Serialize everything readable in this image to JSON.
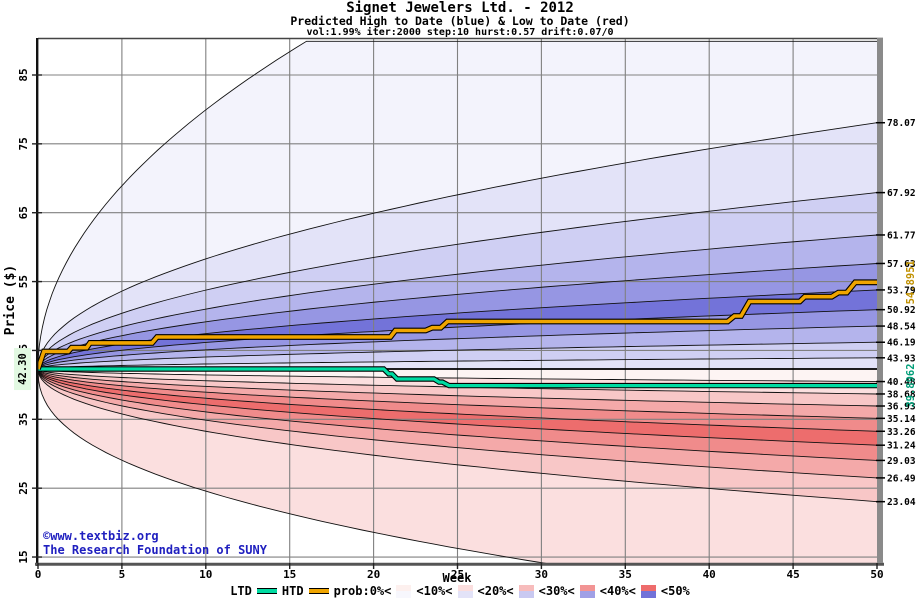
{
  "header": {
    "title": "Signet Jewelers Ltd. - 2012",
    "subtitle": "Predicted High to Date (blue) &  Low to Date (red)",
    "params": "vol:1.99% iter:2000 step:10 hurst:0.57 drift:0.07/0"
  },
  "watermark": {
    "line1": "©www.textbiz.org",
    "line2": "The Research Foundation of SUNY",
    "color": "#1f1fbf"
  },
  "chart_data": {
    "type": "area",
    "title": "Signet Jewelers Ltd. - 2012",
    "xlabel": "Week",
    "ylabel": "Price ($)",
    "xlim": [
      0,
      50
    ],
    "ylim": [
      14.1,
      90.4
    ],
    "x_ticks": [
      0,
      5,
      10,
      15,
      20,
      25,
      30,
      35,
      40,
      45,
      50
    ],
    "y_ticks": [
      15,
      25,
      35,
      45,
      55,
      65,
      75,
      85
    ],
    "grid": true,
    "start_price": 42.3,
    "start_price_label": "42.30",
    "start_label_bg": "#e2f9e2",
    "high_fan": {
      "description": "High-to-date percentile boundary curves, right-edge end values",
      "boundary_end_values": [
        78.07,
        67.92,
        61.77,
        57.63,
        53.79,
        50.92,
        48.54,
        46.19,
        43.93
      ],
      "labeled_exponent": 0.5,
      "envelope": {
        "cap_price": 89.9,
        "cap_week": 16,
        "exponent": 0.5
      },
      "band_fills": [
        "#f3f3fc",
        "#e3e3f8",
        "#cfcff3",
        "#b4b4ec",
        "#9696e3",
        "#7373d9",
        "#9696e3",
        "#b4b4ec",
        "#cfcff3",
        "#e3e3f8"
      ]
    },
    "low_fan": {
      "description": "Low-to-date percentile boundary curves, right-edge end values",
      "boundary_end_values": [
        40.48,
        38.68,
        36.93,
        35.14,
        33.26,
        31.24,
        29.03,
        26.49,
        23.04
      ],
      "labeled_exponent": 0.47,
      "envelope": {
        "drop": 28.2,
        "exit_week": 30.2,
        "exponent": 0.42
      },
      "band_fills": [
        "#fdf4f3",
        "#fbdfdf",
        "#f8c7c7",
        "#f4a9a9",
        "#f08b8b",
        "#ed6d6d",
        "#f08b8b",
        "#f4a9a9",
        "#f8c7c7",
        "#fbdfdf",
        "#fdf4f3"
      ]
    },
    "htd_line": {
      "name": "HTD",
      "end_label": "54.8951",
      "color": "#f0a500",
      "label_color": "#c09000",
      "points": [
        [
          0,
          42.3
        ],
        [
          0.35,
          44.85
        ],
        [
          1.8,
          44.85
        ],
        [
          2.0,
          45.4
        ],
        [
          2.9,
          45.4
        ],
        [
          3.1,
          46.1
        ],
        [
          6.8,
          46.1
        ],
        [
          7.1,
          46.95
        ],
        [
          21.0,
          46.95
        ],
        [
          21.3,
          47.9
        ],
        [
          23.1,
          47.9
        ],
        [
          23.5,
          48.3
        ],
        [
          24.0,
          48.3
        ],
        [
          24.4,
          49.2
        ],
        [
          41.1,
          49.2
        ],
        [
          41.5,
          50.0
        ],
        [
          41.9,
          50.0
        ],
        [
          42.4,
          52.1
        ],
        [
          45.4,
          52.1
        ],
        [
          45.7,
          52.8
        ],
        [
          47.3,
          52.8
        ],
        [
          47.7,
          53.4
        ],
        [
          48.2,
          53.4
        ],
        [
          48.7,
          54.9
        ],
        [
          50,
          54.9
        ]
      ]
    },
    "ltd_line": {
      "name": "LTD",
      "end_label": "39.8962",
      "color": "#00dba2",
      "label_color": "#009e78",
      "points": [
        [
          0,
          42.3
        ],
        [
          20.6,
          42.3
        ],
        [
          20.9,
          41.6
        ],
        [
          21.1,
          41.6
        ],
        [
          21.4,
          40.85
        ],
        [
          23.6,
          40.85
        ],
        [
          23.9,
          40.4
        ],
        [
          24.1,
          40.4
        ],
        [
          24.5,
          39.9
        ],
        [
          50,
          39.9
        ]
      ]
    },
    "colors": {
      "grid": "#808080",
      "curve": "#111111",
      "frame": "#444444",
      "right_bar": "#8a8a8a",
      "baseline": "#000000"
    }
  },
  "legend": {
    "ltd_label": "LTD",
    "htd_label": "HTD",
    "prob_labels": [
      "prob:0%<",
      "<10%<",
      "<20%<",
      "<30%<",
      "<40%<",
      "<50%"
    ],
    "swatches": [
      {
        "top": "#fdf0ee",
        "bottom": "#f7f7fd"
      },
      {
        "top": "#fbdede",
        "bottom": "#e3e3f8"
      },
      {
        "top": "#f7bcbc",
        "bottom": "#c9c9f1"
      },
      {
        "top": "#f29494",
        "bottom": "#a0a0e6"
      },
      {
        "top": "#ee6c6c",
        "bottom": "#7272d8"
      }
    ]
  }
}
